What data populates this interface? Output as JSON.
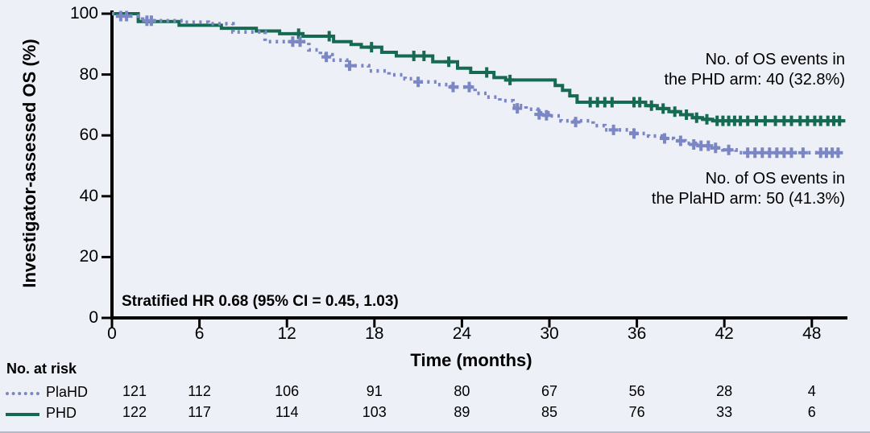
{
  "chart_data": {
    "type": "line",
    "subtype": "kaplan-meier-step",
    "title": "",
    "xlabel": "Time (months)",
    "ylabel": "Investigator-assessed OS (%)",
    "xlim": [
      0,
      50.5
    ],
    "ylim": [
      0,
      100
    ],
    "x_ticks": [
      0,
      6,
      12,
      18,
      24,
      30,
      36,
      42,
      48
    ],
    "y_ticks": [
      0,
      20,
      40,
      60,
      80,
      100
    ],
    "grid": false,
    "legend_position": "risk-table-left",
    "background_color": "#eef0f8",
    "axis_color": "#000000",
    "hr_annotation": "Stratified HR 0.68 (95% CI = 0.45, 1.03)",
    "annotations": [
      {
        "id": "phd-events",
        "line1": "No. of OS events in",
        "line2": "the PHD arm: 40 (32.8%)",
        "align": "right"
      },
      {
        "id": "plahd-events",
        "line1": "No. of OS events in",
        "line2": "the PlaHD arm: 50 (41.3%)",
        "align": "right"
      }
    ],
    "series": [
      {
        "name": "PHD",
        "color": "#176a52",
        "line_style": "solid",
        "steps": [
          [
            0,
            100
          ],
          [
            1.8,
            97.4
          ],
          [
            4.6,
            96.2
          ],
          [
            7.5,
            95.2
          ],
          [
            9.9,
            94.3
          ],
          [
            11.5,
            93.4
          ],
          [
            13.1,
            92.6
          ],
          [
            15.2,
            90.8
          ],
          [
            16.4,
            89.9
          ],
          [
            17.1,
            89.0
          ],
          [
            18.5,
            87.3
          ],
          [
            19.5,
            86.1
          ],
          [
            22.0,
            84.2
          ],
          [
            23.7,
            82.1
          ],
          [
            24.6,
            80.7
          ],
          [
            26.2,
            79.0
          ],
          [
            27.0,
            78.2
          ],
          [
            30.4,
            76.4
          ],
          [
            30.9,
            74.8
          ],
          [
            31.4,
            73.0
          ],
          [
            31.9,
            70.9
          ],
          [
            36.6,
            69.8
          ],
          [
            37.4,
            68.8
          ],
          [
            38.2,
            67.8
          ],
          [
            39.0,
            66.8
          ],
          [
            39.8,
            65.8
          ],
          [
            40.5,
            65.3
          ],
          [
            41.2,
            64.8
          ],
          [
            50.3,
            64.8
          ]
        ],
        "censor_marks": [
          [
            12.8,
            93.4
          ],
          [
            14.9,
            92.6
          ],
          [
            17.8,
            89.0
          ],
          [
            20.7,
            86.1
          ],
          [
            21.4,
            86.1
          ],
          [
            23.1,
            84.2
          ],
          [
            25.7,
            80.7
          ],
          [
            27.3,
            78.2
          ],
          [
            32.8,
            70.9
          ],
          [
            33.3,
            70.9
          ],
          [
            33.8,
            70.9
          ],
          [
            34.3,
            70.9
          ],
          [
            35.8,
            70.9
          ],
          [
            36.2,
            70.9
          ],
          [
            37.0,
            69.8
          ],
          [
            37.8,
            68.8
          ],
          [
            38.6,
            67.8
          ],
          [
            39.4,
            66.8
          ],
          [
            40.1,
            65.8
          ],
          [
            40.8,
            65.3
          ],
          [
            41.5,
            64.8
          ],
          [
            41.9,
            64.8
          ],
          [
            42.3,
            64.8
          ],
          [
            42.7,
            64.8
          ],
          [
            43.1,
            64.8
          ],
          [
            43.6,
            64.8
          ],
          [
            44.2,
            64.8
          ],
          [
            44.8,
            64.8
          ],
          [
            45.5,
            64.8
          ],
          [
            46.1,
            64.8
          ],
          [
            46.6,
            64.8
          ],
          [
            47.2,
            64.8
          ],
          [
            47.7,
            64.8
          ],
          [
            48.2,
            64.8
          ],
          [
            48.6,
            64.8
          ],
          [
            49.1,
            64.8
          ],
          [
            49.5,
            64.8
          ],
          [
            49.9,
            64.8
          ]
        ]
      },
      {
        "name": "PlaHD",
        "color": "#7b86c4",
        "line_style": "dotted",
        "steps": [
          [
            0,
            100
          ],
          [
            0.4,
            99.2
          ],
          [
            2.1,
            97.7
          ],
          [
            5.0,
            97.2
          ],
          [
            6.6,
            96.7
          ],
          [
            8.3,
            94.0
          ],
          [
            10.5,
            90.8
          ],
          [
            13.5,
            88.1
          ],
          [
            14.3,
            86.5
          ],
          [
            15.1,
            84.7
          ],
          [
            16.1,
            82.9
          ],
          [
            17.6,
            81.2
          ],
          [
            19.0,
            79.9
          ],
          [
            20.1,
            78.6
          ],
          [
            21.1,
            77.6
          ],
          [
            22.3,
            76.7
          ],
          [
            23.3,
            75.9
          ],
          [
            24.9,
            73.8
          ],
          [
            25.7,
            72.6
          ],
          [
            26.6,
            71.4
          ],
          [
            27.5,
            69.8
          ],
          [
            28.4,
            68.6
          ],
          [
            29.2,
            67.4
          ],
          [
            29.9,
            66.4
          ],
          [
            30.8,
            64.8
          ],
          [
            33.0,
            63.2
          ],
          [
            33.8,
            61.8
          ],
          [
            35.6,
            60.6
          ],
          [
            36.8,
            59.8
          ],
          [
            37.7,
            59.0
          ],
          [
            38.5,
            58.2
          ],
          [
            39.3,
            57.4
          ],
          [
            40.0,
            56.6
          ],
          [
            41.0,
            55.9
          ],
          [
            41.9,
            55.2
          ],
          [
            42.8,
            54.3
          ],
          [
            50.0,
            54.3
          ]
        ],
        "censor_marks": [
          [
            0.6,
            99.2
          ],
          [
            1.0,
            99.2
          ],
          [
            2.4,
            97.7
          ],
          [
            2.7,
            97.7
          ],
          [
            12.4,
            90.8
          ],
          [
            12.9,
            90.8
          ],
          [
            14.7,
            85.8
          ],
          [
            16.3,
            82.9
          ],
          [
            21.0,
            77.6
          ],
          [
            23.4,
            75.9
          ],
          [
            24.5,
            75.9
          ],
          [
            27.8,
            68.9
          ],
          [
            29.3,
            66.9
          ],
          [
            29.8,
            66.6
          ],
          [
            31.8,
            64.4
          ],
          [
            34.4,
            61.8
          ],
          [
            35.8,
            60.6
          ],
          [
            37.9,
            59.0
          ],
          [
            39.0,
            58.2
          ],
          [
            39.9,
            57.0
          ],
          [
            40.4,
            56.6
          ],
          [
            40.9,
            56.6
          ],
          [
            41.4,
            55.9
          ],
          [
            42.3,
            55.2
          ],
          [
            43.6,
            54.3
          ],
          [
            44.1,
            54.3
          ],
          [
            44.6,
            54.3
          ],
          [
            45.1,
            54.3
          ],
          [
            45.6,
            54.3
          ],
          [
            46.1,
            54.3
          ],
          [
            46.6,
            54.3
          ],
          [
            47.4,
            54.3
          ],
          [
            48.6,
            54.3
          ],
          [
            49.0,
            54.3
          ],
          [
            49.4,
            54.3
          ],
          [
            49.8,
            54.3
          ]
        ]
      }
    ],
    "at_risk": {
      "title": "No. at risk",
      "time_points": [
        0,
        6,
        12,
        18,
        24,
        30,
        36,
        42,
        48
      ],
      "rows": [
        {
          "label": "PlaHD",
          "color": "#7b86c4",
          "line_style": "dotted",
          "values": [
            121,
            112,
            106,
            91,
            80,
            67,
            56,
            28,
            4
          ]
        },
        {
          "label": "PHD",
          "color": "#176a52",
          "line_style": "solid",
          "values": [
            122,
            117,
            114,
            103,
            89,
            85,
            76,
            33,
            6
          ]
        }
      ]
    }
  }
}
